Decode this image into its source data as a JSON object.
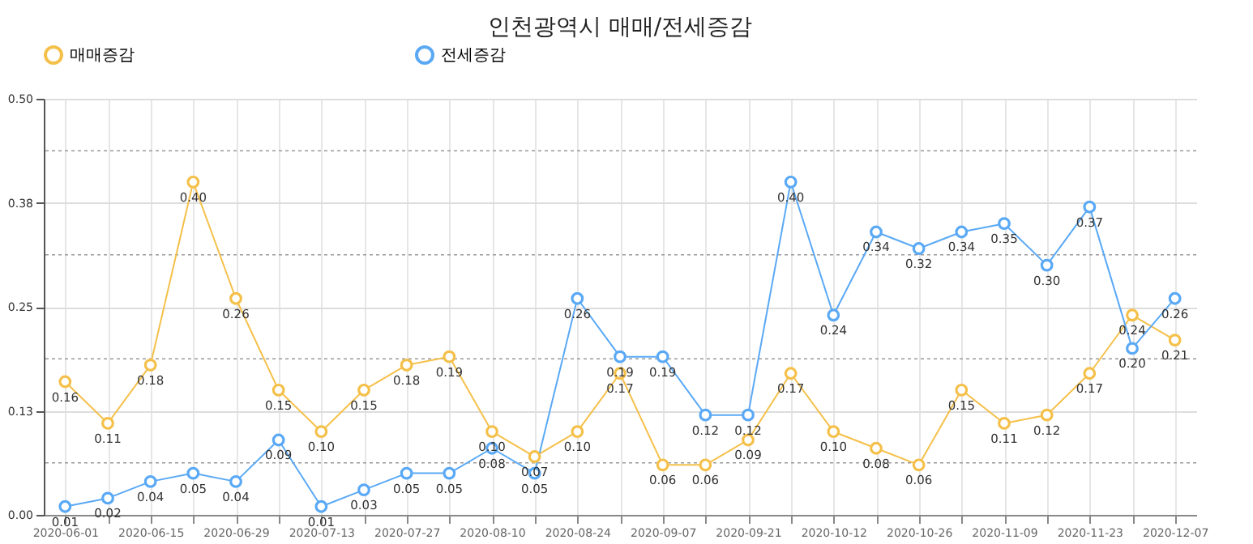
{
  "chart_data": {
    "type": "line",
    "title": "인천광역시 매매/전세증감",
    "categories": [
      "2020-06-01",
      null,
      "2020-06-15",
      null,
      "2020-06-29",
      null,
      "2020-07-13",
      null,
      "2020-07-27",
      null,
      "2020-08-10",
      null,
      "2020-08-24",
      null,
      "2020-09-07",
      null,
      "2020-09-21",
      null,
      "2020-10-12",
      null,
      "2020-10-26",
      null,
      "2020-11-09",
      null,
      "2020-11-23",
      null,
      "2020-12-07"
    ],
    "series": [
      {
        "name": "매매증감",
        "color": "#f5c04a",
        "values": [
          0.16,
          0.11,
          0.18,
          0.4,
          0.26,
          0.15,
          0.1,
          0.15,
          0.18,
          0.19,
          0.1,
          0.07,
          0.1,
          0.17,
          0.06,
          0.06,
          0.09,
          0.17,
          0.1,
          0.08,
          0.06,
          0.15,
          0.11,
          0.12,
          0.17,
          0.24,
          0.21
        ],
        "value_labels": [
          "0.16",
          "0.11",
          "0.18",
          "0.40",
          "0.26",
          "0.15",
          "0.10",
          "0.15",
          "0.18",
          "0.19",
          "0.10",
          "0.07",
          "0.10",
          "0.17",
          "0.06",
          "0.06",
          "0.09",
          "0.17",
          "0.10",
          "0.08",
          "0.06",
          "0.15",
          "0.11",
          "0.12",
          "0.17",
          "0.24",
          "0.21"
        ]
      },
      {
        "name": "전세증감",
        "color": "#5aa9f5",
        "values": [
          0.01,
          0.02,
          0.04,
          0.05,
          0.04,
          0.09,
          0.01,
          0.03,
          0.05,
          0.05,
          0.08,
          0.05,
          0.26,
          0.19,
          0.19,
          0.12,
          0.12,
          0.4,
          0.24,
          0.34,
          0.32,
          0.34,
          0.35,
          0.3,
          0.37,
          0.2,
          0.26
        ],
        "value_labels": [
          "0.01",
          "0.02",
          "0.04",
          "0.05",
          "0.04",
          "0.09",
          "0.01",
          "0.03",
          "0.05",
          "0.05",
          "0.08",
          "0.05",
          "0.26",
          "0.19",
          "0.19",
          "0.12",
          "0.12",
          "0.40",
          "0.24",
          "0.34",
          "0.32",
          "0.34",
          "0.35",
          "0.30",
          "0.37",
          "0.20",
          "0.26"
        ]
      }
    ],
    "ylim": [
      0,
      0.5
    ],
    "yticks": [
      {
        "value": 0,
        "label": "0.00"
      },
      {
        "value": 0.0625,
        "label": null
      },
      {
        "value": 0.125,
        "label": "0.13"
      },
      {
        "value": 0.1875,
        "label": null
      },
      {
        "value": 0.25,
        "label": "0.25"
      },
      {
        "value": 0.3125,
        "label": null
      },
      {
        "value": 0.375,
        "label": "0.38"
      },
      {
        "value": 0.4375,
        "label": null
      },
      {
        "value": 0.5,
        "label": "0.50"
      }
    ],
    "grid": true,
    "legend": "top",
    "marker": "circle",
    "line_style": "solid"
  }
}
